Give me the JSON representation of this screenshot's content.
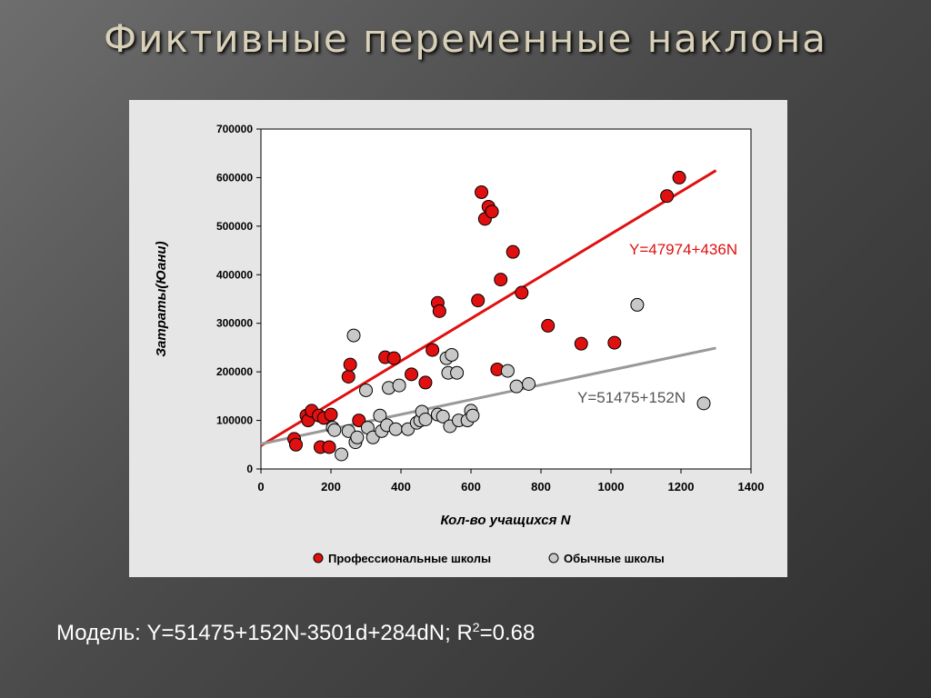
{
  "title": "Фиктивные переменные наклона",
  "model": {
    "prefix": "Модель:",
    "equation": "Y=51475+152N-3501d+284dN;",
    "r_label": "R",
    "r_sup": "2",
    "r_value": "=0.68"
  },
  "colors": {
    "professional": "#e01010",
    "ordinary": "#c8c8c8",
    "professional_line": "#e01010",
    "ordinary_line": "#999999",
    "ordinary_eq_text": "#555555"
  },
  "chart_data": {
    "type": "scatter",
    "xlabel": "Кол-во учащихся  N",
    "ylabel": "Затраты(Юани)",
    "xlim": [
      0,
      1400
    ],
    "ylim": [
      0,
      700000
    ],
    "xticks": [
      "0",
      "200",
      "400",
      "600",
      "800",
      "1000",
      "1200",
      "1400"
    ],
    "yticks": [
      "0",
      "100000",
      "200000",
      "300000",
      "400000",
      "500000",
      "600000",
      "700000"
    ],
    "grid": false,
    "legend_position": "bottom",
    "series": [
      {
        "name": "Профессиональные школы",
        "points": [
          [
            95,
            62000
          ],
          [
            100,
            50000
          ],
          [
            130,
            110000
          ],
          [
            135,
            100000
          ],
          [
            145,
            120000
          ],
          [
            165,
            110000
          ],
          [
            170,
            45000
          ],
          [
            180,
            105000
          ],
          [
            195,
            45000
          ],
          [
            200,
            112000
          ],
          [
            250,
            190000
          ],
          [
            255,
            215000
          ],
          [
            280,
            100000
          ],
          [
            355,
            230000
          ],
          [
            380,
            228000
          ],
          [
            430,
            195000
          ],
          [
            470,
            178000
          ],
          [
            490,
            245000
          ],
          [
            505,
            342000
          ],
          [
            510,
            325000
          ],
          [
            620,
            347000
          ],
          [
            630,
            570000
          ],
          [
            640,
            515000
          ],
          [
            650,
            540000
          ],
          [
            660,
            530000
          ],
          [
            675,
            205000
          ],
          [
            685,
            390000
          ],
          [
            720,
            447000
          ],
          [
            745,
            363000
          ],
          [
            820,
            295000
          ],
          [
            915,
            258000
          ],
          [
            1010,
            260000
          ],
          [
            1160,
            562000
          ],
          [
            1195,
            600000
          ]
        ]
      },
      {
        "name": "Обычные школы",
        "points": [
          [
            205,
            85000
          ],
          [
            210,
            80000
          ],
          [
            230,
            30000
          ],
          [
            250,
            78000
          ],
          [
            265,
            275000
          ],
          [
            270,
            55000
          ],
          [
            275,
            65000
          ],
          [
            300,
            162000
          ],
          [
            305,
            85000
          ],
          [
            320,
            65000
          ],
          [
            340,
            110000
          ],
          [
            345,
            78000
          ],
          [
            360,
            90000
          ],
          [
            365,
            167000
          ],
          [
            385,
            82000
          ],
          [
            395,
            172000
          ],
          [
            420,
            82000
          ],
          [
            445,
            95000
          ],
          [
            455,
            100000
          ],
          [
            460,
            118000
          ],
          [
            470,
            102000
          ],
          [
            505,
            112000
          ],
          [
            520,
            108000
          ],
          [
            530,
            228000
          ],
          [
            535,
            198000
          ],
          [
            540,
            88000
          ],
          [
            545,
            235000
          ],
          [
            560,
            198000
          ],
          [
            565,
            100000
          ],
          [
            590,
            100000
          ],
          [
            600,
            120000
          ],
          [
            605,
            110000
          ],
          [
            705,
            202000
          ],
          [
            730,
            170000
          ],
          [
            765,
            175000
          ],
          [
            1075,
            338000
          ],
          [
            1265,
            135000
          ]
        ]
      }
    ],
    "trendlines": [
      {
        "series": "Профессиональные школы",
        "label": "Y=47974+436N",
        "intercept": 47974,
        "slope": 436
      },
      {
        "series": "Обычные школы",
        "label": "Y=51475+152N",
        "intercept": 51475,
        "slope": 152
      }
    ],
    "trend_x_range": [
      0,
      1300
    ]
  }
}
